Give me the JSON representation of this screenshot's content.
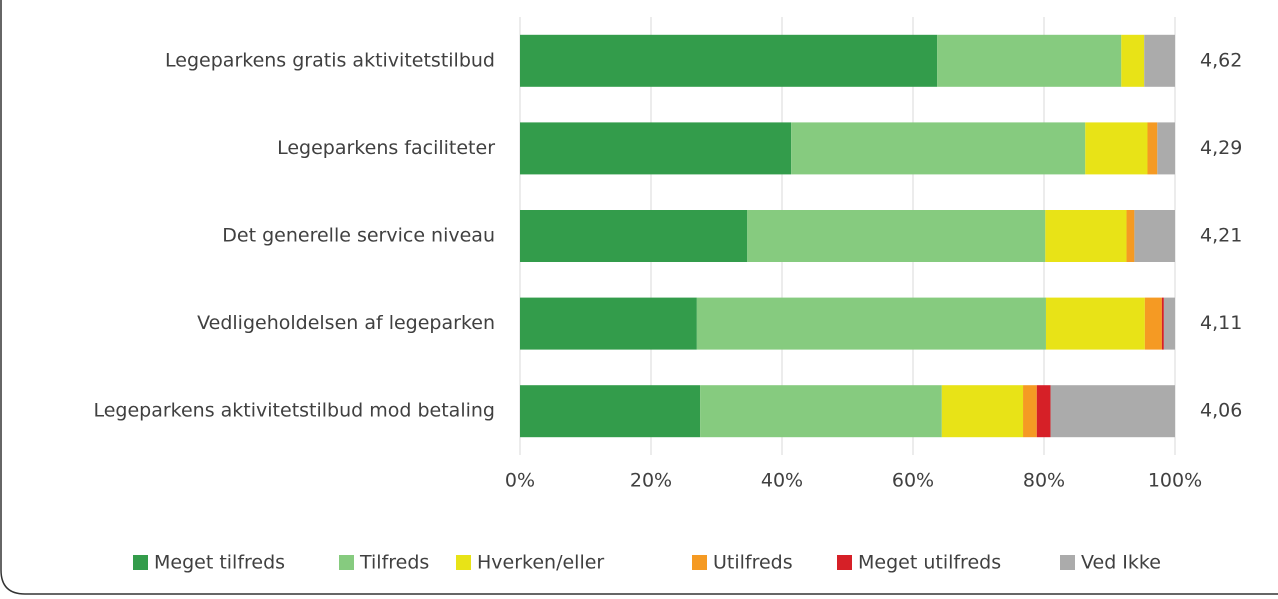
{
  "chart_data": {
    "type": "stacked_barh",
    "categories": [
      "Legeparkens gratis aktivitetstilbud",
      "Legeparkens faciliteter",
      "Det generelle service niveau",
      "Vedligeholdelsen af legeparken",
      "Legeparkens aktivitetstilbud mod betaling"
    ],
    "series": [
      {
        "name": "Meget tilfreds",
        "color": "#339c4b",
        "values": [
          63.7,
          41.4,
          34.7,
          27.0,
          27.5
        ]
      },
      {
        "name": "Tilfreds",
        "color": "#86cb7f",
        "values": [
          28.1,
          44.9,
          45.5,
          53.3,
          36.9
        ]
      },
      {
        "name": "Hverken/eller",
        "color": "#e8e317",
        "values": [
          3.5,
          9.5,
          12.4,
          15.1,
          12.4
        ]
      },
      {
        "name": "Utilfreds",
        "color": "#f59a23",
        "values": [
          0,
          1.5,
          1.2,
          2.6,
          2.1
        ]
      },
      {
        "name": "Meget utilfreds",
        "color": "#d62027",
        "values": [
          0,
          0,
          0,
          0.3,
          2.1
        ]
      },
      {
        "name": "Ved Ikke",
        "color": "#ababab",
        "values": [
          4.7,
          2.7,
          6.2,
          1.7,
          19.0
        ]
      }
    ],
    "averages": [
      "4,62",
      "4,29",
      "4,21",
      "4,11",
      "4,06"
    ],
    "xlim": [
      0,
      100
    ],
    "xticks": [
      {
        "value": 0,
        "label": "0%"
      },
      {
        "value": 20,
        "label": "20%"
      },
      {
        "value": 40,
        "label": "40%"
      },
      {
        "value": 60,
        "label": "60%"
      },
      {
        "value": 80,
        "label": "80%"
      },
      {
        "value": 100,
        "label": "100%"
      }
    ],
    "grid": true,
    "legend": "bottom"
  }
}
